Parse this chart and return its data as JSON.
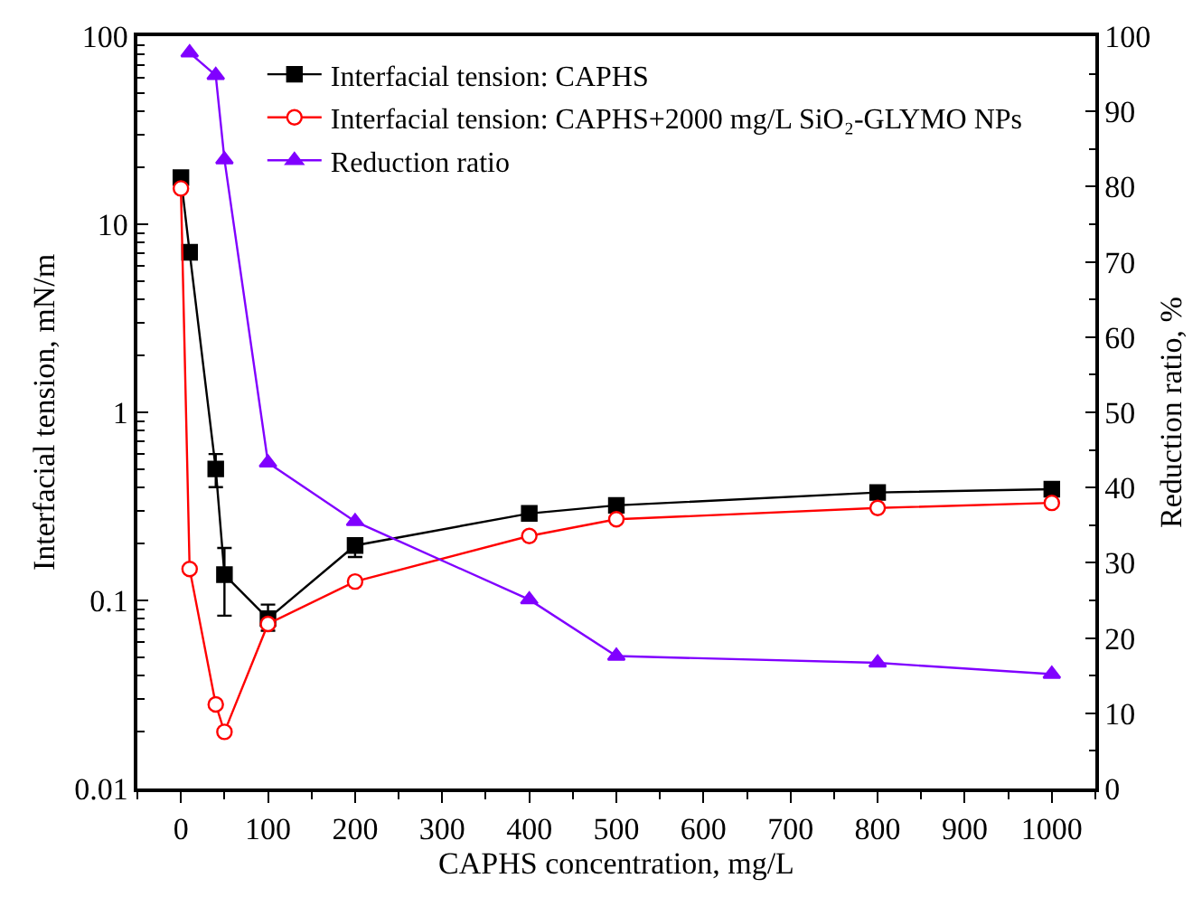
{
  "chart_data": {
    "type": "line",
    "xlabel": "CAPHS concentration, mg/L",
    "ylabel": "Interfacial tension, mN/m",
    "y2label": "Reduction ratio, %",
    "xlim": [
      -50,
      1050
    ],
    "xticks": [
      0,
      100,
      200,
      300,
      400,
      500,
      600,
      700,
      800,
      900,
      1000
    ],
    "ylim": [
      0.01,
      100
    ],
    "yticks": [
      0.01,
      0.1,
      1,
      10,
      100
    ],
    "log": "y",
    "y2lim": [
      0,
      100
    ],
    "y2ticks": [
      0,
      10,
      20,
      30,
      40,
      50,
      60,
      70,
      80,
      90,
      100
    ],
    "grid": false,
    "legend": "top",
    "series": [
      {
        "name": "Interfacial tension: CAPHS",
        "color": "#000000",
        "marker": "square",
        "x": [
          0,
          10,
          40,
          50,
          100,
          200,
          400,
          500,
          800,
          1000
        ],
        "values": [
          17.7,
          7.1,
          0.5,
          0.137,
          0.08,
          0.196,
          0.29,
          0.32,
          0.375,
          0.39
        ],
        "errors": [
          null,
          null,
          [
            0.4,
            0.6
          ],
          [
            0.083,
            0.19
          ],
          [
            0.069,
            0.095
          ],
          [
            0.17,
            0.21
          ],
          null,
          null,
          null,
          null
        ]
      },
      {
        "name": "Interfacial tension: CAPHS+2000 mg/L SiO₂-GLYMO NPs",
        "color": "#ff0000",
        "marker": "circle",
        "x": [
          0,
          10,
          40,
          50,
          100,
          200,
          400,
          500,
          800,
          1000
        ],
        "values": [
          15.5,
          0.147,
          0.028,
          0.02,
          0.075,
          0.126,
          0.22,
          0.27,
          0.31,
          0.33
        ]
      },
      {
        "name": "Reduction ratio",
        "color": "#8000ff",
        "marker": "triangle",
        "axis": "y2",
        "x": [
          10,
          40,
          50,
          100,
          200,
          400,
          500,
          800,
          1000
        ],
        "values": [
          97.8,
          94.8,
          83.6,
          43.3,
          35.5,
          25.1,
          17.6,
          16.7,
          15.2
        ]
      }
    ]
  }
}
